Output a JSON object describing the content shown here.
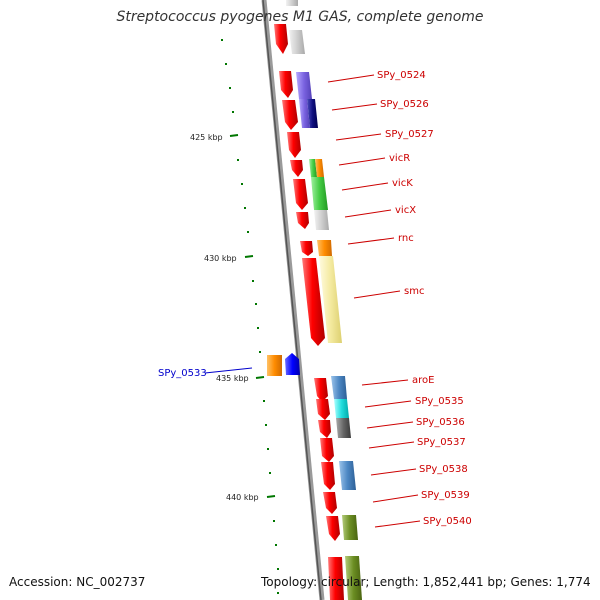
{
  "title": "Streptococcus pyogenes M1 GAS, complete genome",
  "footer": {
    "accession": "Accession: NC_002737",
    "topology": "Topology: circular; Length: 1,852,441 bp; Genes: 1,774"
  },
  "colors": {
    "backbone": "#8c8c8c",
    "cds": "#ff0000",
    "forward_label": "#cc0000",
    "reverse_label": "#0000cc",
    "tick": "#007700"
  },
  "ticks": [
    "425 kbp",
    "430 kbp",
    "435 kbp",
    "440 kbp"
  ],
  "gene_labels": {
    "forward": [
      "SPy_0524",
      "SPy_0526",
      "SPy_0527",
      "vicR",
      "vicK",
      "vicX",
      "rnc",
      "smc",
      "aroE",
      "SPy_0535",
      "SPy_0536",
      "SPy_0537",
      "SPy_0538",
      "SPy_0539",
      "SPy_0540"
    ],
    "reverse": [
      "SPy_0533"
    ]
  }
}
